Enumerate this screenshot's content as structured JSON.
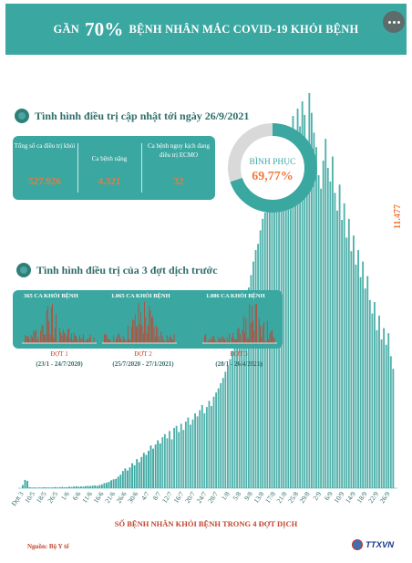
{
  "banner": {
    "title_prefix": "GẦN",
    "title_pct": "70%",
    "title_suffix": "BỆNH NHÂN MẮC COVID-19 KHỎI BỆNH"
  },
  "section_current": {
    "title": "Tình hình điều trị cập nhật tới ngày 26/9/2021",
    "stats": [
      {
        "label": "Tổng số ca điều trị khỏi",
        "value": "527.926"
      },
      {
        "label": "Ca bệnh nặng",
        "value": "4.321"
      },
      {
        "label": "Ca bệnh nguy kịch đang điều trị ECMO",
        "value": "32"
      }
    ],
    "recovery": {
      "label": "BÌNH PHỤC",
      "value": "69,77%",
      "fraction": 0.6977
    }
  },
  "section_waves": {
    "title": "Tình hình điều trị của 3 đợt dịch trước",
    "waves": [
      {
        "head": "365 CA KHỎI BỆNH",
        "name": "ĐỢT 1",
        "range": "(23/1 - 24/7/2020)"
      },
      {
        "head": "1.065 CA KHỎI BỆNH",
        "name": "ĐỢT 2",
        "range": "(25/7/2020 - 27/1/2021)"
      },
      {
        "head": "1.086 CA KHỎI BỆNH",
        "name": "ĐỢT 3",
        "range": "(28/1 - 26/4/2021)"
      }
    ]
  },
  "colors": {
    "teal": "#3aa7a1",
    "bar_light": "#4fb0aa",
    "accent_orange": "#ef7a3d",
    "accent_red": "#c2442f"
  },
  "icons": [
    "more-icon",
    "virus-icon",
    "ttxvn-logo-icon"
  ],
  "chart_data": {
    "type": "bar",
    "title": "SỐ BỆNH NHÂN KHỎI BỆNH TRONG 4 ĐỢT DỊCH",
    "xlabel": "",
    "ylabel": "",
    "tick_labels": [
      "Đợt 3",
      "10/5",
      "18/5",
      "26/5",
      "1/6",
      "6/6",
      "11/6",
      "16/6",
      "21/6",
      "26/6",
      "30/6",
      "4/7",
      "8/7",
      "12/7",
      "16/7",
      "20/7",
      "24/7",
      "28/7",
      "1/8",
      "5/8",
      "9/8",
      "13/8",
      "17/8",
      "21/8",
      "25/8",
      "29/8",
      "2/9",
      "6/9",
      "10/9",
      "14/9",
      "18/9",
      "22/9",
      "26/9"
    ],
    "last_value_label": "11.477",
    "last_value": 11477,
    "grid": false,
    "legend": "none",
    "approx_values": [
      300,
      800,
      700,
      100,
      60,
      80,
      50,
      70,
      60,
      90,
      80,
      70,
      60,
      80,
      110,
      70,
      90,
      120,
      80,
      100,
      140,
      110,
      160,
      180,
      140,
      170,
      150,
      190,
      220,
      200,
      240,
      260,
      220,
      300,
      360,
      480,
      520,
      610,
      760,
      850,
      900,
      1100,
      1300,
      1650,
      1900,
      1700,
      2000,
      2400,
      2200,
      2800,
      2500,
      3000,
      3400,
      3200,
      3600,
      4100,
      3800,
      4200,
      4600,
      4300,
      4900,
      5200,
      4800,
      5500,
      4700,
      5800,
      6000,
      5400,
      6200,
      5600,
      6400,
      6800,
      6100,
      6600,
      7200,
      6900,
      7500,
      8000,
      7200,
      7800,
      8400,
      7900,
      8800,
      9200,
      9600,
      10100,
      10600,
      11200,
      11800,
      12400,
      13200,
      14100,
      15000,
      15900,
      16800,
      17600,
      18400,
      19300,
      20500,
      21800,
      22900,
      23500,
      24800,
      25900,
      26500,
      27800,
      28100,
      26800,
      29500,
      30200,
      31600,
      28400,
      32600,
      33900,
      31200,
      34600,
      35800,
      33400,
      36500,
      34800,
      37200,
      35900,
      33100,
      38000,
      36100,
      34200,
      32800,
      30100,
      28800,
      31500,
      33600,
      30800,
      29500,
      31900,
      28400,
      26700,
      29200,
      25800,
      27400,
      24100,
      25900,
      22800,
      24300,
      21500,
      22900,
      20300,
      21800,
      19200,
      20400,
      18100,
      16800,
      17900,
      15200,
      16600,
      14300,
      15400,
      13800,
      14900,
      12700,
      11477
    ]
  }
}
